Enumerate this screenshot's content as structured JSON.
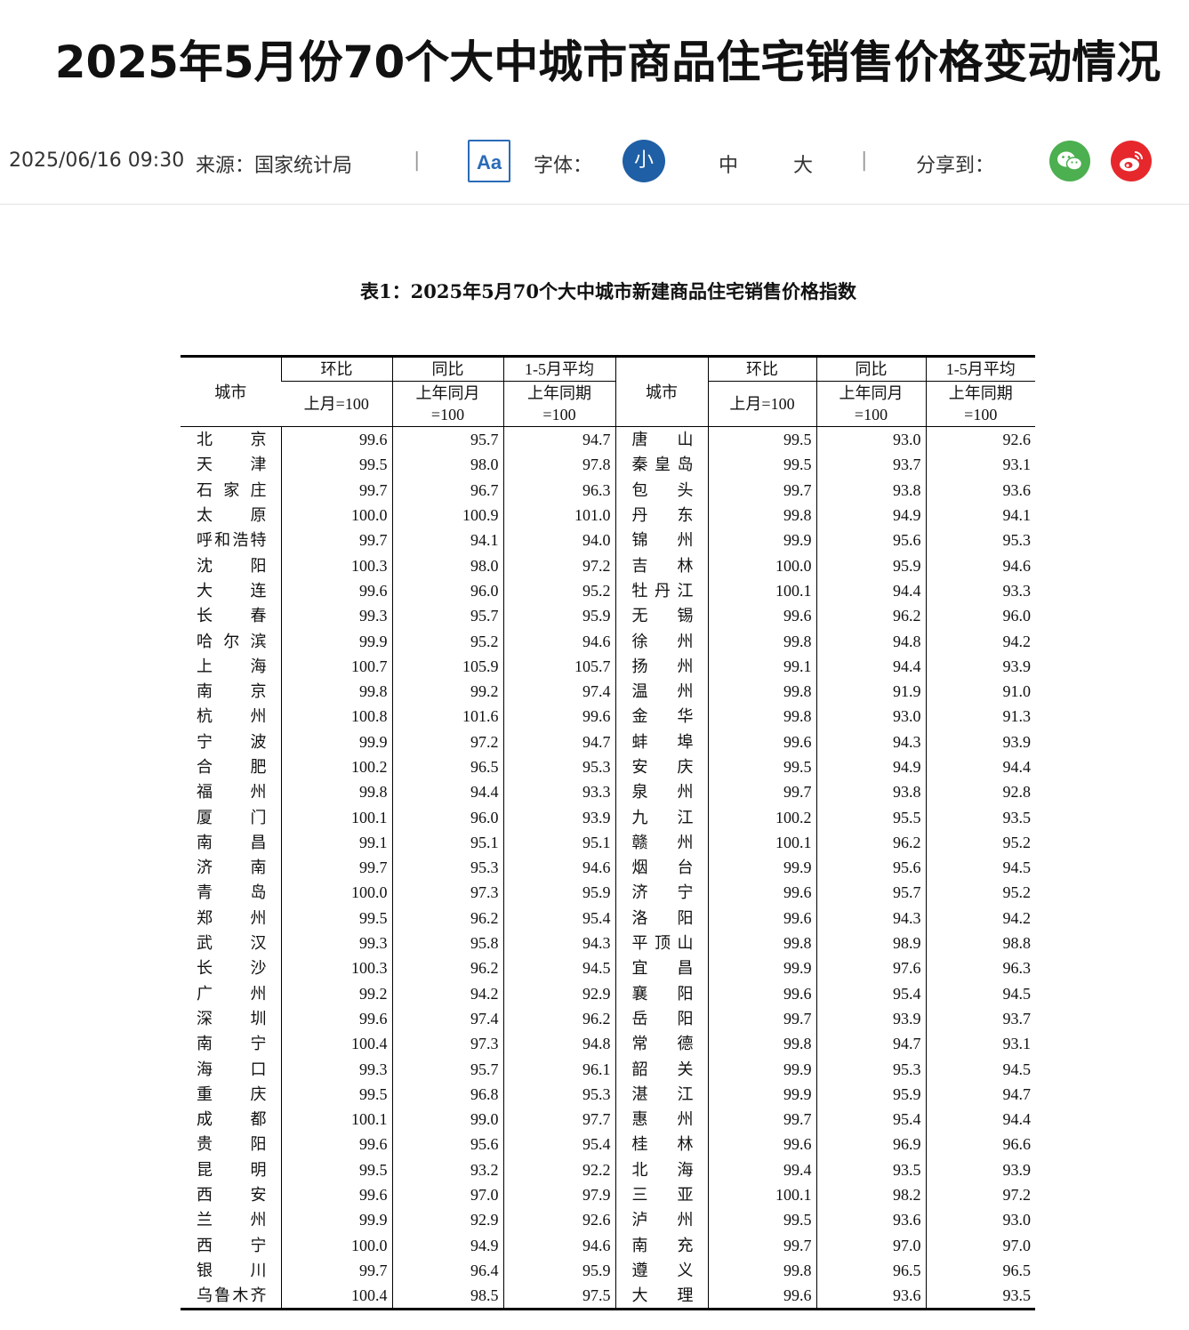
{
  "title": "2025年5月份70个大中城市商品住宅销售价格变动情况",
  "meta": {
    "datetime": "2025/06/16 09:30",
    "source": "来源：国家统计局",
    "separator": "|",
    "font_toggle_icon": "Aa",
    "font_label": "字体：",
    "font_small": "小",
    "font_medium": "中",
    "font_large": "大",
    "share_label": "分享到：",
    "share_icons": [
      "wechat-icon",
      "weibo-icon"
    ],
    "colors": {
      "accent": "#1f5fa5",
      "wechat": "#4caf50",
      "weibo": "#e6282c"
    }
  },
  "table": {
    "caption": "表1：2025年5月70个大中城市新建商品住宅销售价格指数",
    "header": {
      "city": "城市",
      "mom": "环比",
      "yoy": "同比",
      "avg": "1-5月平均",
      "mom_base": "上月=100",
      "yoy_base_1": "上年同月",
      "yoy_base_2": "=100",
      "avg_base_1": "上年同期",
      "avg_base_2": "=100"
    },
    "rows": [
      {
        "left": [
          "北京",
          "99.6",
          "95.7",
          "94.7"
        ],
        "right": [
          "唐山",
          "99.5",
          "93.0",
          "92.6"
        ]
      },
      {
        "left": [
          "天津",
          "99.5",
          "98.0",
          "97.8"
        ],
        "right": [
          "秦皇岛",
          "99.5",
          "93.7",
          "93.1"
        ]
      },
      {
        "left": [
          "石家庄",
          "99.7",
          "96.7",
          "96.3"
        ],
        "right": [
          "包头",
          "99.7",
          "93.8",
          "93.6"
        ]
      },
      {
        "left": [
          "太原",
          "100.0",
          "100.9",
          "101.0"
        ],
        "right": [
          "丹东",
          "99.8",
          "94.9",
          "94.1"
        ]
      },
      {
        "left": [
          "呼和浩特",
          "99.7",
          "94.1",
          "94.0"
        ],
        "right": [
          "锦州",
          "99.9",
          "95.6",
          "95.3"
        ]
      },
      {
        "left": [
          "沈阳",
          "100.3",
          "98.0",
          "97.2"
        ],
        "right": [
          "吉林",
          "100.0",
          "95.9",
          "94.6"
        ]
      },
      {
        "left": [
          "大连",
          "99.6",
          "96.0",
          "95.2"
        ],
        "right": [
          "牡丹江",
          "100.1",
          "94.4",
          "93.3"
        ]
      },
      {
        "left": [
          "长春",
          "99.3",
          "95.7",
          "95.9"
        ],
        "right": [
          "无锡",
          "99.6",
          "96.2",
          "96.0"
        ]
      },
      {
        "left": [
          "哈尔滨",
          "99.9",
          "95.2",
          "94.6"
        ],
        "right": [
          "徐州",
          "99.8",
          "94.8",
          "94.2"
        ]
      },
      {
        "left": [
          "上海",
          "100.7",
          "105.9",
          "105.7"
        ],
        "right": [
          "扬州",
          "99.1",
          "94.4",
          "93.9"
        ]
      },
      {
        "left": [
          "南京",
          "99.8",
          "99.2",
          "97.4"
        ],
        "right": [
          "温州",
          "99.8",
          "91.9",
          "91.0"
        ]
      },
      {
        "left": [
          "杭州",
          "100.8",
          "101.6",
          "99.6"
        ],
        "right": [
          "金华",
          "99.8",
          "93.0",
          "91.3"
        ]
      },
      {
        "left": [
          "宁波",
          "99.9",
          "97.2",
          "94.7"
        ],
        "right": [
          "蚌埠",
          "99.6",
          "94.3",
          "93.9"
        ]
      },
      {
        "left": [
          "合肥",
          "100.2",
          "96.5",
          "95.3"
        ],
        "right": [
          "安庆",
          "99.5",
          "94.9",
          "94.4"
        ]
      },
      {
        "left": [
          "福州",
          "99.8",
          "94.4",
          "93.3"
        ],
        "right": [
          "泉州",
          "99.7",
          "93.8",
          "92.8"
        ]
      },
      {
        "left": [
          "厦门",
          "100.1",
          "96.0",
          "93.9"
        ],
        "right": [
          "九江",
          "100.2",
          "95.5",
          "93.5"
        ]
      },
      {
        "left": [
          "南昌",
          "99.1",
          "95.1",
          "95.1"
        ],
        "right": [
          "赣州",
          "100.1",
          "96.2",
          "95.2"
        ]
      },
      {
        "left": [
          "济南",
          "99.7",
          "95.3",
          "94.6"
        ],
        "right": [
          "烟台",
          "99.9",
          "95.6",
          "94.5"
        ]
      },
      {
        "left": [
          "青岛",
          "100.0",
          "97.3",
          "95.9"
        ],
        "right": [
          "济宁",
          "99.6",
          "95.7",
          "95.2"
        ]
      },
      {
        "left": [
          "郑州",
          "99.5",
          "96.2",
          "95.4"
        ],
        "right": [
          "洛阳",
          "99.6",
          "94.3",
          "94.2"
        ]
      },
      {
        "left": [
          "武汉",
          "99.3",
          "95.8",
          "94.3"
        ],
        "right": [
          "平顶山",
          "99.8",
          "98.9",
          "98.8"
        ]
      },
      {
        "left": [
          "长沙",
          "100.3",
          "96.2",
          "94.5"
        ],
        "right": [
          "宜昌",
          "99.9",
          "97.6",
          "96.3"
        ]
      },
      {
        "left": [
          "广州",
          "99.2",
          "94.2",
          "92.9"
        ],
        "right": [
          "襄阳",
          "99.6",
          "95.4",
          "94.5"
        ]
      },
      {
        "left": [
          "深圳",
          "99.6",
          "97.4",
          "96.2"
        ],
        "right": [
          "岳阳",
          "99.7",
          "93.9",
          "93.7"
        ]
      },
      {
        "left": [
          "南宁",
          "100.4",
          "97.3",
          "94.8"
        ],
        "right": [
          "常德",
          "99.8",
          "94.7",
          "93.1"
        ]
      },
      {
        "left": [
          "海口",
          "99.3",
          "95.7",
          "96.1"
        ],
        "right": [
          "韶关",
          "99.9",
          "95.3",
          "94.5"
        ]
      },
      {
        "left": [
          "重庆",
          "99.5",
          "96.8",
          "95.3"
        ],
        "right": [
          "湛江",
          "99.9",
          "95.9",
          "94.7"
        ]
      },
      {
        "left": [
          "成都",
          "100.1",
          "99.0",
          "97.7"
        ],
        "right": [
          "惠州",
          "99.7",
          "95.4",
          "94.4"
        ]
      },
      {
        "left": [
          "贵阳",
          "99.6",
          "95.6",
          "95.4"
        ],
        "right": [
          "桂林",
          "99.6",
          "96.9",
          "96.6"
        ]
      },
      {
        "left": [
          "昆明",
          "99.5",
          "93.2",
          "92.2"
        ],
        "right": [
          "北海",
          "99.4",
          "93.5",
          "93.9"
        ]
      },
      {
        "left": [
          "西安",
          "99.6",
          "97.0",
          "97.9"
        ],
        "right": [
          "三亚",
          "100.1",
          "98.2",
          "97.2"
        ]
      },
      {
        "left": [
          "兰州",
          "99.9",
          "92.9",
          "92.6"
        ],
        "right": [
          "泸州",
          "99.5",
          "93.6",
          "93.0"
        ]
      },
      {
        "left": [
          "西宁",
          "100.0",
          "94.9",
          "94.6"
        ],
        "right": [
          "南充",
          "99.7",
          "97.0",
          "97.0"
        ]
      },
      {
        "left": [
          "银川",
          "99.7",
          "96.4",
          "95.9"
        ],
        "right": [
          "遵义",
          "99.8",
          "96.5",
          "96.5"
        ]
      },
      {
        "left": [
          "乌鲁木齐",
          "100.4",
          "98.5",
          "97.5"
        ],
        "right": [
          "大理",
          "99.6",
          "93.6",
          "93.5"
        ]
      }
    ]
  }
}
